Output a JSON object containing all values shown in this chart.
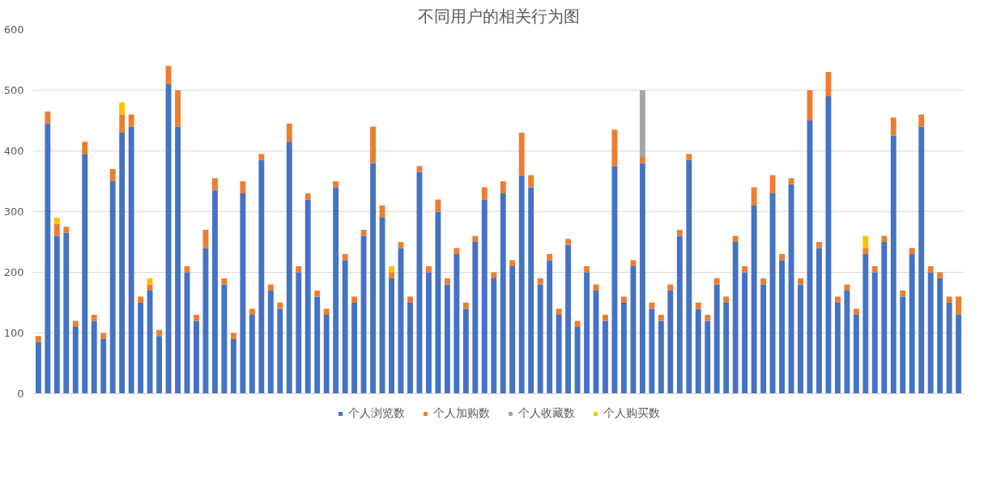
{
  "chart_data": {
    "type": "bar",
    "title": "不同用户的相关行为图",
    "stacked": true,
    "categories": [
      null,
      null,
      null,
      null,
      null,
      null,
      null,
      null,
      null,
      null,
      null,
      null,
      null,
      null,
      null,
      null,
      null,
      null,
      null,
      null,
      null,
      null,
      null,
      null,
      null,
      null,
      null,
      null,
      null,
      null,
      null,
      null,
      null,
      null,
      null,
      null,
      null,
      null,
      null,
      null,
      null,
      null,
      null,
      null,
      null,
      null,
      null,
      null,
      null,
      null,
      null,
      null,
      null,
      null,
      null,
      null,
      null,
      null,
      null,
      null,
      null,
      null,
      null,
      null,
      null,
      null,
      null,
      null,
      null,
      null,
      null,
      null,
      null,
      null,
      null,
      null,
      null,
      null,
      null,
      null,
      null,
      null,
      null,
      null,
      null,
      null,
      null,
      null,
      null,
      null,
      null,
      null,
      null,
      null,
      null,
      null,
      null,
      null,
      null,
      null
    ],
    "series": [
      {
        "name": "个人浏览数",
        "color": "#4472c4",
        "values": [
          85,
          445,
          260,
          265,
          110,
          395,
          120,
          90,
          350,
          430,
          440,
          150,
          170,
          95,
          510,
          440,
          200,
          120,
          240,
          335,
          180,
          90,
          330,
          130,
          385,
          170,
          140,
          415,
          200,
          320,
          160,
          130,
          340,
          220,
          150,
          260,
          380,
          290,
          190,
          240,
          150,
          365,
          200,
          300,
          180,
          230,
          140,
          250,
          320,
          190,
          330,
          210,
          360,
          340,
          180,
          220,
          130,
          245,
          110,
          200,
          170,
          120,
          375,
          150,
          210,
          380,
          140,
          120,
          170,
          260,
          385,
          140,
          120,
          180,
          150,
          250,
          200,
          310,
          180,
          330,
          220,
          345,
          180,
          450,
          240,
          490,
          150,
          170,
          130,
          230,
          200,
          250,
          425,
          160,
          230,
          440,
          200,
          190,
          150,
          130
        ]
      },
      {
        "name": "个人加购数",
        "color": "#ed7d31",
        "values": [
          10,
          20,
          20,
          10,
          10,
          20,
          10,
          10,
          20,
          30,
          20,
          10,
          10,
          10,
          30,
          60,
          10,
          10,
          30,
          20,
          10,
          10,
          20,
          10,
          10,
          10,
          10,
          30,
          10,
          10,
          10,
          10,
          10,
          10,
          10,
          10,
          60,
          20,
          10,
          10,
          10,
          10,
          10,
          20,
          10,
          10,
          10,
          10,
          20,
          10,
          20,
          10,
          70,
          20,
          10,
          10,
          10,
          10,
          10,
          10,
          10,
          10,
          60,
          10,
          10,
          10,
          10,
          10,
          10,
          10,
          10,
          10,
          10,
          10,
          10,
          10,
          10,
          30,
          10,
          30,
          10,
          10,
          10,
          50,
          10,
          40,
          10,
          10,
          10,
          10,
          10,
          10,
          30,
          10,
          10,
          20,
          10,
          10,
          10,
          30
        ]
      },
      {
        "name": "个人收藏数",
        "color": "#a5a5a5",
        "values": [
          0,
          0,
          0,
          0,
          0,
          0,
          0,
          0,
          0,
          0,
          0,
          0,
          0,
          0,
          0,
          0,
          0,
          0,
          0,
          0,
          0,
          0,
          0,
          0,
          0,
          0,
          0,
          0,
          0,
          0,
          0,
          0,
          0,
          0,
          0,
          0,
          0,
          0,
          0,
          0,
          0,
          0,
          0,
          0,
          0,
          0,
          0,
          0,
          0,
          0,
          0,
          0,
          0,
          0,
          0,
          0,
          0,
          0,
          0,
          0,
          0,
          0,
          0,
          0,
          0,
          110,
          0,
          0,
          0,
          0,
          0,
          0,
          0,
          0,
          0,
          0,
          0,
          0,
          0,
          0,
          0,
          0,
          0,
          0,
          0,
          0,
          0,
          0,
          0,
          0,
          0,
          0,
          0,
          0,
          0,
          0,
          0,
          0,
          0,
          0
        ]
      },
      {
        "name": "个人购买数",
        "color": "#ffc000",
        "values": [
          0,
          0,
          10,
          0,
          0,
          0,
          0,
          0,
          0,
          20,
          0,
          0,
          10,
          0,
          0,
          0,
          0,
          0,
          0,
          0,
          0,
          0,
          0,
          0,
          0,
          0,
          0,
          0,
          0,
          0,
          0,
          0,
          0,
          0,
          0,
          0,
          0,
          0,
          10,
          0,
          0,
          0,
          0,
          0,
          0,
          0,
          0,
          0,
          0,
          0,
          0,
          0,
          0,
          0,
          0,
          0,
          0,
          0,
          0,
          0,
          0,
          0,
          0,
          0,
          0,
          0,
          0,
          0,
          0,
          0,
          0,
          0,
          0,
          0,
          0,
          0,
          0,
          0,
          0,
          0,
          0,
          0,
          0,
          0,
          0,
          0,
          0,
          0,
          0,
          20,
          0,
          0,
          0,
          0,
          0,
          0,
          0,
          0,
          0,
          0
        ]
      }
    ],
    "ylim": [
      0,
      600
    ],
    "yticks": [
      0,
      100,
      200,
      300,
      400,
      500,
      600
    ],
    "grid": "y",
    "legend": "bottom",
    "tick_labels": "y"
  }
}
